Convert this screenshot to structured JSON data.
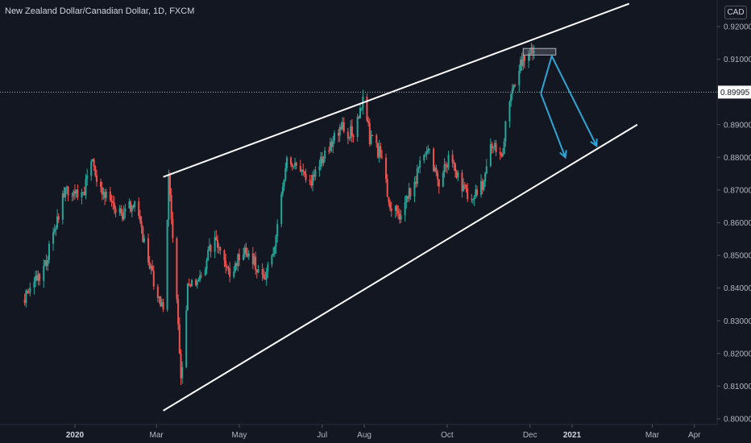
{
  "header": {
    "title": "New Zealand Dollar/Canadian Dollar, 1D, FXCM",
    "currency": "CAD"
  },
  "colors": {
    "background": "#131722",
    "up": "#26a69a",
    "down": "#ef5350",
    "trendline": "#ffffff",
    "projection": "#2ea4d6",
    "axis_text": "#b2b5be",
    "price_label_bg": "#ffffff",
    "price_label_text": "#131722"
  },
  "chart_data": {
    "type": "candlestick",
    "symbol": "NZDCAD",
    "timeframe": "1D",
    "source": "FXCM",
    "yticks": [
      "0.92000",
      "0.91000",
      "0.90000",
      "0.89000",
      "0.88000",
      "0.87000",
      "0.86000",
      "0.85000",
      "0.84000",
      "0.83000",
      "0.82000",
      "0.81000",
      "0.80000"
    ],
    "xticks": [
      "2020",
      "Mar",
      "May",
      "Jul",
      "Aug",
      "Oct",
      "Dec",
      "2021",
      "Mar",
      "Apr"
    ],
    "bold_xticks": [
      "2020",
      "2021"
    ],
    "ylim": [
      0.7985,
      0.9255
    ],
    "current_price": "0.89995",
    "price_path": [
      [
        "2019-11-25",
        0.8365
      ],
      [
        "2019-12-10",
        0.847
      ],
      [
        "2019-12-25",
        0.87
      ],
      [
        "2020-01-06",
        0.868
      ],
      [
        "2020-01-14",
        0.8785
      ],
      [
        "2020-01-22",
        0.868
      ],
      [
        "2020-02-05",
        0.863
      ],
      [
        "2020-02-14",
        0.866
      ],
      [
        "2020-02-26",
        0.845
      ],
      [
        "2020-03-06",
        0.833
      ],
      [
        "2020-03-10",
        0.873
      ],
      [
        "2020-03-16",
        0.838
      ],
      [
        "2020-03-19",
        0.812
      ],
      [
        "2020-03-24",
        0.84
      ],
      [
        "2020-04-02",
        0.842
      ],
      [
        "2020-04-13",
        0.856
      ],
      [
        "2020-04-23",
        0.844
      ],
      [
        "2020-05-05",
        0.853
      ],
      [
        "2020-05-20",
        0.843
      ],
      [
        "2020-05-26",
        0.852
      ],
      [
        "2020-06-05",
        0.878
      ],
      [
        "2020-06-15",
        0.876
      ],
      [
        "2020-06-24",
        0.873
      ],
      [
        "2020-07-06",
        0.883
      ],
      [
        "2020-07-16",
        0.889
      ],
      [
        "2020-07-24",
        0.887
      ],
      [
        "2020-07-31",
        0.898
      ],
      [
        "2020-08-05",
        0.886
      ],
      [
        "2020-08-14",
        0.88
      ],
      [
        "2020-08-20",
        0.864
      ],
      [
        "2020-08-28",
        0.862
      ],
      [
        "2020-09-08",
        0.874
      ],
      [
        "2020-09-16",
        0.883
      ],
      [
        "2020-09-25",
        0.872
      ],
      [
        "2020-10-02",
        0.88
      ],
      [
        "2020-10-13",
        0.87
      ],
      [
        "2020-10-20",
        0.868
      ],
      [
        "2020-10-27",
        0.872
      ],
      [
        "2020-11-03",
        0.884
      ],
      [
        "2020-11-10",
        0.88
      ],
      [
        "2020-11-16",
        0.899
      ],
      [
        "2020-11-24",
        0.908
      ],
      [
        "2020-12-01",
        0.913
      ],
      [
        "2020-12-04",
        0.911
      ],
      [
        "2020-12-07",
        0.9
      ]
    ],
    "annotations": {
      "upper_trendline": [
        [
          "2020-03-06",
          0.874
        ],
        [
          "2021-02-12",
          0.927
        ]
      ],
      "lower_trendline": [
        [
          "2020-03-06",
          0.8025
        ],
        [
          "2021-02-18",
          0.89
        ]
      ],
      "resistance_zone": {
        "x": [
          "2020-11-26",
          "2020-12-20"
        ],
        "y": [
          0.9113,
          0.9133
        ]
      },
      "projection_paths": [
        [
          [
            "2020-12-09",
            0.8995
          ],
          [
            "2020-12-17",
            0.911
          ],
          [
            "2021-01-19",
            0.8835
          ]
        ],
        [
          [
            "2020-12-09",
            0.8995
          ],
          [
            "2020-12-27",
            0.88
          ]
        ]
      ]
    }
  }
}
